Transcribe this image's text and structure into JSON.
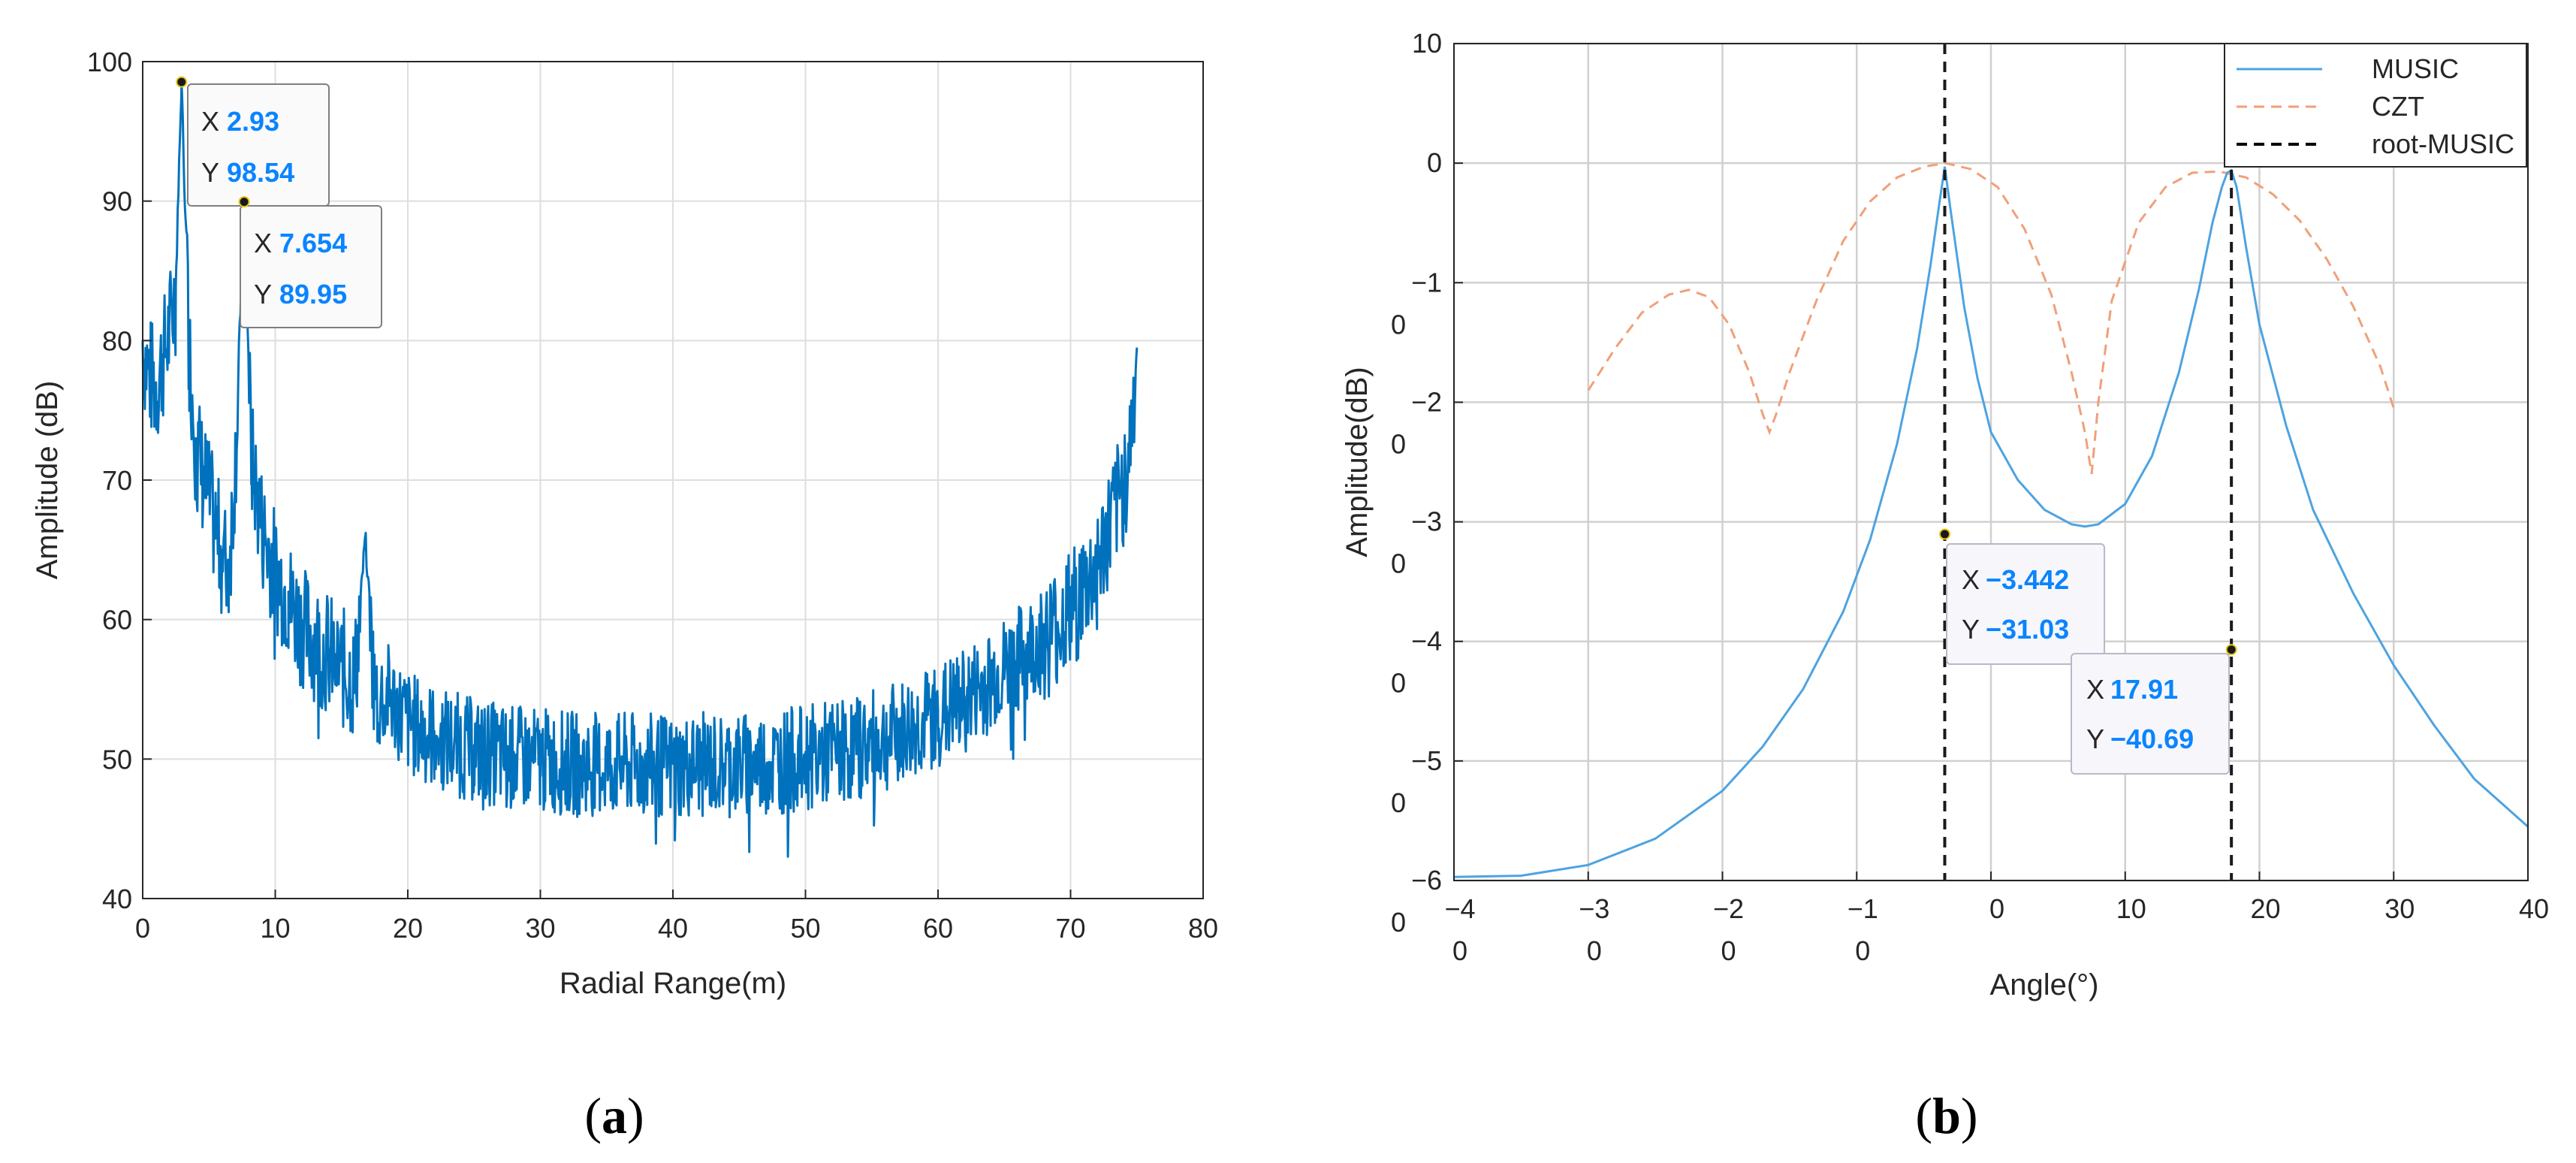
{
  "chart_data": [
    {
      "panel_label_open": "(",
      "panel_label": "a",
      "panel_label_close": ")",
      "type": "line",
      "xlabel": "Radial Range(m)",
      "ylabel": "Amplitude (dB)",
      "xlim": [
        0,
        80
      ],
      "ylim": [
        40,
        100
      ],
      "x_ticks": [
        "0",
        "10",
        "20",
        "30",
        "40",
        "50",
        "60",
        "70",
        "80"
      ],
      "y_ticks": [
        "40",
        "50",
        "60",
        "70",
        "80",
        "90",
        "100"
      ],
      "grid": true,
      "series": [
        {
          "color": "#0072BD",
          "x": [
            0,
            0.5,
            1,
            1.5,
            2,
            2.5,
            2.93,
            3.5,
            4,
            4.5,
            5,
            5.5,
            6,
            6.5,
            7,
            7.654,
            8.2,
            9,
            10,
            11,
            12,
            13,
            14,
            15,
            16,
            16.8,
            17.5,
            18.5,
            20,
            22,
            25,
            28,
            30,
            33,
            35,
            38,
            40,
            43,
            45,
            48,
            50,
            53,
            55,
            58,
            60,
            62,
            64,
            66,
            68,
            70,
            72,
            73,
            74,
            74.5,
            75
          ],
          "values": [
            80,
            78,
            77,
            79,
            81,
            84,
            98.54,
            80,
            73,
            71,
            69,
            67,
            65,
            64,
            72,
            89.95,
            72,
            67,
            64,
            62,
            60,
            59,
            58,
            57,
            56,
            66,
            55,
            55,
            53,
            52,
            51,
            50.5,
            50.3,
            50,
            50,
            49.9,
            49.8,
            50,
            50,
            50.2,
            50.5,
            51,
            51.5,
            52.5,
            53.5,
            54.5,
            56,
            57.5,
            59,
            61,
            64,
            67,
            70,
            73,
            79.5
          ]
        }
      ],
      "annotations": [
        {
          "x_label": "X",
          "x_value": "2.93",
          "y_label": "Y",
          "y_value": "98.54",
          "x": 2.93,
          "y": 98.54
        },
        {
          "x_label": "X",
          "x_value": "7.654",
          "y_label": "Y",
          "y_value": "89.95",
          "x": 7.654,
          "y": 89.95
        }
      ]
    },
    {
      "panel_label_open": "(",
      "panel_label": "b",
      "panel_label_close": ")",
      "type": "line",
      "xlabel": "Angle(°)",
      "ylabel": "Amplitude(dB)",
      "xlim": [
        -40,
        40
      ],
      "ylim": [
        -60,
        10
      ],
      "x_ticks": [
        {
          "v": -40,
          "l1": "−4",
          "l2": "0"
        },
        {
          "v": -30,
          "l1": "−3",
          "l2": "0"
        },
        {
          "v": -20,
          "l1": "−2",
          "l2": "0"
        },
        {
          "v": -10,
          "l1": "−1",
          "l2": "0"
        },
        {
          "v": 0,
          "l1": "0",
          "l2": ""
        },
        {
          "v": 10,
          "l1": "10",
          "l2": ""
        },
        {
          "v": 20,
          "l1": "20",
          "l2": ""
        },
        {
          "v": 30,
          "l1": "30",
          "l2": ""
        },
        {
          "v": 40,
          "l1": "40",
          "l2": ""
        }
      ],
      "y_ticks": [
        {
          "v": 10,
          "l1": "10",
          "l2": ""
        },
        {
          "v": 0,
          "l1": "0",
          "l2": ""
        },
        {
          "v": -10,
          "l1": "−1",
          "l2": "0"
        },
        {
          "v": -20,
          "l1": "−2",
          "l2": "0"
        },
        {
          "v": -30,
          "l1": "−3",
          "l2": "0"
        },
        {
          "v": -40,
          "l1": "−4",
          "l2": "0"
        },
        {
          "v": -50,
          "l1": "−5",
          "l2": "0"
        },
        {
          "v": -60,
          "l1": "−6",
          "l2": "0"
        }
      ],
      "grid": true,
      "legend_position": "top-right",
      "series": [
        {
          "name": "MUSIC",
          "color": "#4DA3E0",
          "style": "solid",
          "x": [
            -40,
            -35,
            -30,
            -25,
            -20,
            -17,
            -14,
            -11,
            -9,
            -7,
            -5.5,
            -4.5,
            -3.8,
            -3.442,
            -3,
            -2,
            -1,
            0,
            2,
            4,
            6,
            7,
            8,
            10,
            12,
            14,
            15.5,
            16.5,
            17.2,
            17.6,
            17.91,
            18.3,
            19,
            20,
            22,
            24,
            27,
            30,
            33,
            36,
            40
          ],
          "values": [
            -59.7,
            -59.6,
            -58.7,
            -56.5,
            -52.5,
            -48.8,
            -44,
            -37.5,
            -31.5,
            -23.5,
            -15.5,
            -8.5,
            -3,
            -0.3,
            -4,
            -12,
            -18,
            -22.5,
            -26.5,
            -29,
            -30.2,
            -30.4,
            -30.2,
            -28.5,
            -24.5,
            -17.5,
            -10.5,
            -5,
            -2,
            -0.8,
            -0.6,
            -2,
            -7,
            -13.5,
            -22,
            -29,
            -36,
            -42,
            -47,
            -51.5,
            -55.5
          ]
        },
        {
          "name": "CZT",
          "color": "#F0A07A",
          "style": "dashed",
          "x": [
            -30,
            -28,
            -26,
            -24,
            -22.5,
            -21,
            -19.5,
            -18,
            -17,
            -16.5,
            -16,
            -15,
            -13,
            -11,
            -9,
            -7,
            -5,
            -3.4,
            -1.5,
            0.5,
            2.5,
            4.5,
            6,
            7,
            7.5,
            8,
            9,
            11,
            13,
            15,
            17,
            19,
            21,
            23,
            25,
            27,
            29,
            30
          ],
          "values": [
            -19,
            -15.5,
            -12.5,
            -11,
            -10.6,
            -11.2,
            -13.5,
            -17.5,
            -21,
            -22.5,
            -21,
            -17.5,
            -11.5,
            -6.5,
            -3.2,
            -1.2,
            -0.3,
            0,
            -0.5,
            -2,
            -5.5,
            -11,
            -17.5,
            -22.5,
            -26,
            -20,
            -11.5,
            -5,
            -2,
            -0.8,
            -0.7,
            -1.2,
            -2.6,
            -4.8,
            -8,
            -12,
            -17,
            -20.5
          ]
        },
        {
          "name": "root-MUSIC",
          "color": "#000000",
          "style": "dashed",
          "vlines": [
            -3.442,
            17.91
          ]
        }
      ],
      "annotations": [
        {
          "x_label": "X",
          "x_value": "−3.442",
          "y_label": "Y",
          "y_value": "−31.03",
          "x": -3.442,
          "y": -31.03
        },
        {
          "x_label": "X",
          "x_value": "17.91",
          "y_label": "Y",
          "y_value": "−40.69",
          "x": 17.91,
          "y": -40.69
        }
      ]
    }
  ]
}
